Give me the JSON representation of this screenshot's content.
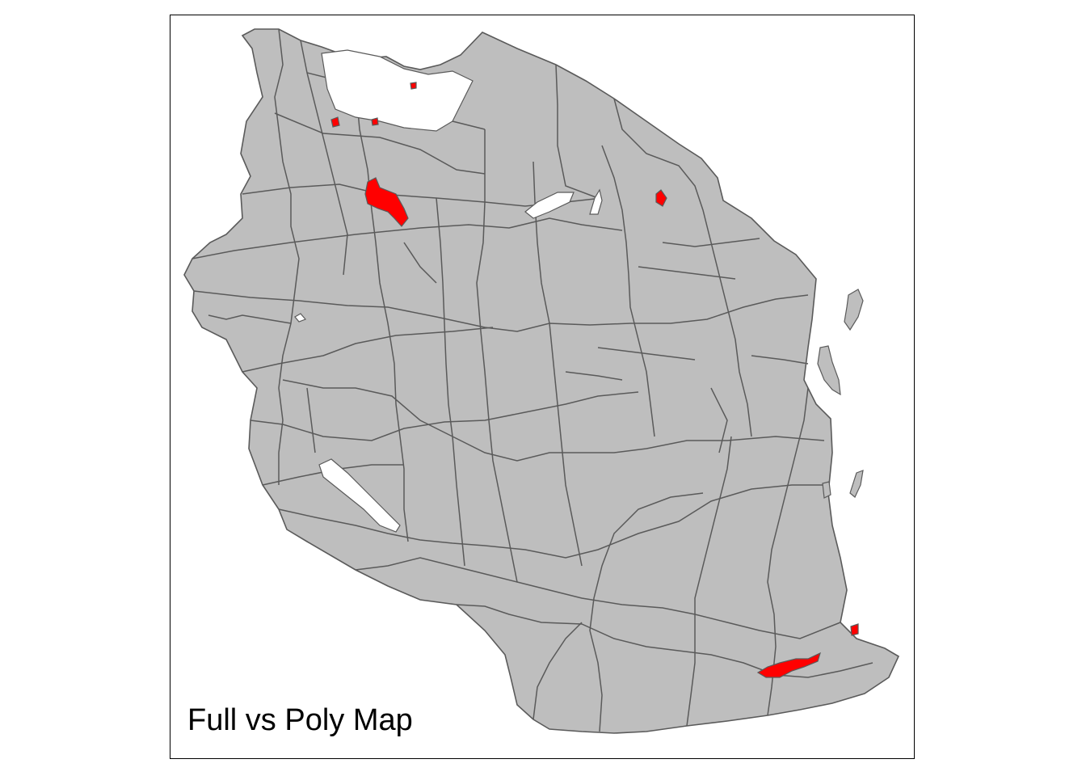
{
  "map": {
    "title": "Full vs Poly Map",
    "colors": {
      "land_fill": "#BEBEBE",
      "boundary": "#5A5A5A",
      "highlight_fill": "#FF0000",
      "water": "#FFFFFF",
      "frame": "#000000",
      "background": "#FFFFFF"
    },
    "highlighted_regions": 7
  }
}
